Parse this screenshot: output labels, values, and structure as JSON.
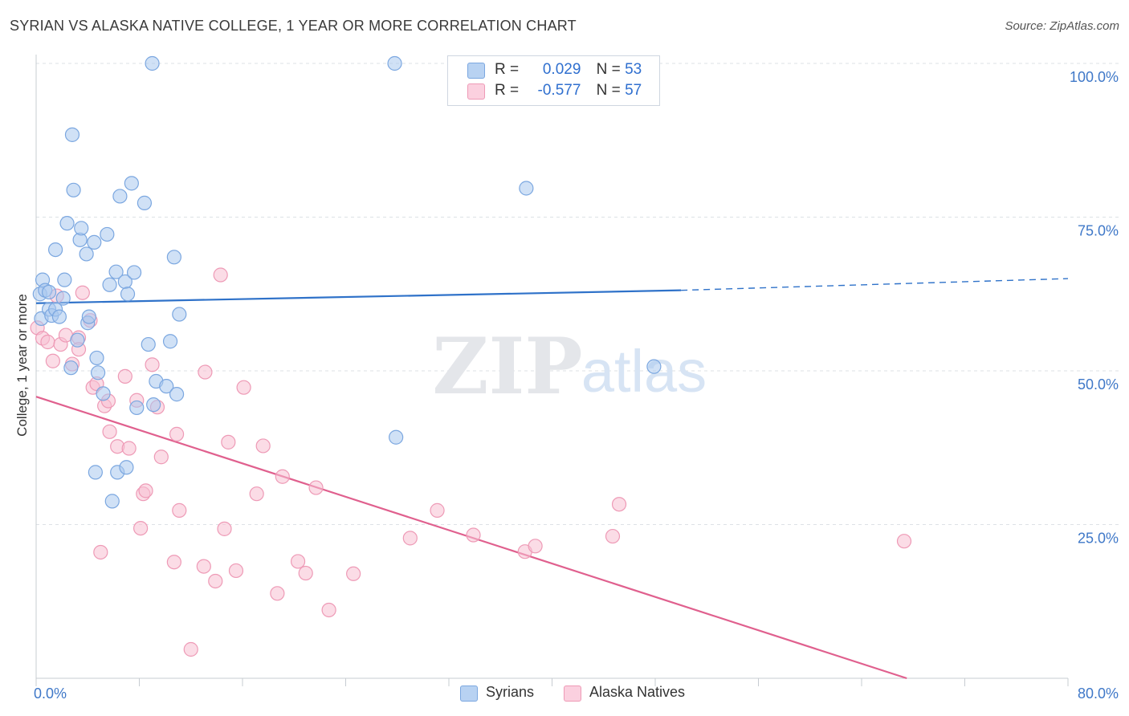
{
  "title": "SYRIAN VS ALASKA NATIVE COLLEGE, 1 YEAR OR MORE CORRELATION CHART",
  "source": "Source: ZipAtlas.com",
  "watermark": {
    "zip": "ZIP",
    "atlas": "atlas"
  },
  "legend": {
    "rows": [
      {
        "r_label": "R =",
        "r_value": "0.029",
        "n_label": "N =",
        "n_value": "53"
      },
      {
        "r_label": "R =",
        "r_value": "-0.577",
        "n_label": "N =",
        "n_value": "57"
      }
    ]
  },
  "bottom_legend": {
    "syrians": "Syrians",
    "alaska": "Alaska Natives"
  },
  "colors": {
    "syrians_fill": "#a9c8ef",
    "syrians_stroke": "#7ba7e0",
    "syrians_line": "#2f72c9",
    "alaska_fill": "#f7bfd1",
    "alaska_stroke": "#ee9ab6",
    "alaska_line": "#e0608e",
    "tick_text": "#3f78c8",
    "grid": "#dde1e6"
  },
  "chart_data": {
    "type": "scatter",
    "title": "SYRIAN VS ALASKA NATIVE COLLEGE, 1 YEAR OR MORE CORRELATION CHART",
    "xlabel": "",
    "ylabel": "College, 1 year or more",
    "xlim": [
      0,
      80
    ],
    "ylim": [
      0,
      100
    ],
    "x_tick_labels": [
      "0.0%",
      "80.0%"
    ],
    "y_ticks": [
      25,
      50,
      75,
      100
    ],
    "y_tick_labels": [
      "25.0%",
      "50.0%",
      "75.0%",
      "100.0%"
    ],
    "grid": true,
    "legend_position": "top-center",
    "series": [
      {
        "name": "Syrians",
        "trend": {
          "x": [
            0,
            50,
            80
          ],
          "y": [
            61.0,
            63.1,
            65.0
          ],
          "solid_to": 50
        },
        "points": [
          [
            0.3,
            62.5
          ],
          [
            0.4,
            58.5
          ],
          [
            0.5,
            64.8
          ],
          [
            0.7,
            63.1
          ],
          [
            1.0,
            60.0
          ],
          [
            1.0,
            62.8
          ],
          [
            1.2,
            59.0
          ],
          [
            1.5,
            69.7
          ],
          [
            1.5,
            60.0
          ],
          [
            1.8,
            58.8
          ],
          [
            2.1,
            61.8
          ],
          [
            2.2,
            64.8
          ],
          [
            2.4,
            74.0
          ],
          [
            2.7,
            50.5
          ],
          [
            2.8,
            88.4
          ],
          [
            2.9,
            79.4
          ],
          [
            3.2,
            55.0
          ],
          [
            3.4,
            71.3
          ],
          [
            3.5,
            73.2
          ],
          [
            3.9,
            69.0
          ],
          [
            4.0,
            57.8
          ],
          [
            4.1,
            58.8
          ],
          [
            4.5,
            70.9
          ],
          [
            4.6,
            33.5
          ],
          [
            4.7,
            52.1
          ],
          [
            4.8,
            49.7
          ],
          [
            5.2,
            46.3
          ],
          [
            5.5,
            72.2
          ],
          [
            5.7,
            64.0
          ],
          [
            5.9,
            28.8
          ],
          [
            6.2,
            66.1
          ],
          [
            6.3,
            33.5
          ],
          [
            6.5,
            78.4
          ],
          [
            6.9,
            64.5
          ],
          [
            7.0,
            34.3
          ],
          [
            7.1,
            62.5
          ],
          [
            7.4,
            80.5
          ],
          [
            7.6,
            66.0
          ],
          [
            7.8,
            44.0
          ],
          [
            8.4,
            77.3
          ],
          [
            8.7,
            54.3
          ],
          [
            9.0,
            100.0
          ],
          [
            9.1,
            44.5
          ],
          [
            9.3,
            48.3
          ],
          [
            10.1,
            47.5
          ],
          [
            10.4,
            54.8
          ],
          [
            10.7,
            68.5
          ],
          [
            10.9,
            46.2
          ],
          [
            11.1,
            59.2
          ],
          [
            27.8,
            100.0
          ],
          [
            27.9,
            39.2
          ],
          [
            38.0,
            79.7
          ],
          [
            47.9,
            50.7
          ]
        ]
      },
      {
        "name": "Alaska Natives",
        "trend": {
          "x": [
            0,
            67.5
          ],
          "y": [
            45.8,
            0.0
          ]
        },
        "points": [
          [
            0.1,
            57.0
          ],
          [
            0.5,
            55.3
          ],
          [
            0.9,
            54.7
          ],
          [
            1.3,
            51.6
          ],
          [
            1.6,
            62.2
          ],
          [
            1.9,
            54.3
          ],
          [
            2.3,
            55.8
          ],
          [
            2.8,
            51.1
          ],
          [
            3.3,
            55.4
          ],
          [
            3.3,
            53.5
          ],
          [
            3.6,
            62.7
          ],
          [
            4.2,
            58.2
          ],
          [
            4.4,
            47.3
          ],
          [
            4.7,
            47.9
          ],
          [
            5.0,
            20.5
          ],
          [
            5.3,
            44.3
          ],
          [
            5.6,
            45.1
          ],
          [
            5.7,
            40.1
          ],
          [
            6.3,
            37.7
          ],
          [
            6.9,
            49.1
          ],
          [
            7.2,
            37.4
          ],
          [
            7.8,
            45.2
          ],
          [
            8.1,
            24.4
          ],
          [
            8.3,
            30.0
          ],
          [
            8.5,
            30.5
          ],
          [
            9.0,
            51.0
          ],
          [
            9.4,
            44.1
          ],
          [
            9.7,
            36.0
          ],
          [
            10.7,
            18.9
          ],
          [
            10.9,
            39.7
          ],
          [
            11.1,
            27.3
          ],
          [
            12.0,
            4.7
          ],
          [
            13.0,
            18.2
          ],
          [
            13.1,
            49.8
          ],
          [
            13.9,
            15.8
          ],
          [
            14.3,
            65.6
          ],
          [
            14.6,
            24.3
          ],
          [
            14.9,
            38.4
          ],
          [
            15.5,
            17.5
          ],
          [
            16.1,
            47.3
          ],
          [
            17.1,
            30.0
          ],
          [
            17.6,
            37.8
          ],
          [
            18.7,
            13.8
          ],
          [
            19.1,
            32.8
          ],
          [
            20.3,
            19.0
          ],
          [
            20.9,
            17.1
          ],
          [
            21.7,
            31.0
          ],
          [
            22.7,
            11.1
          ],
          [
            24.6,
            17.0
          ],
          [
            29.0,
            22.8
          ],
          [
            31.1,
            27.3
          ],
          [
            33.9,
            23.3
          ],
          [
            37.9,
            20.6
          ],
          [
            38.7,
            21.5
          ],
          [
            44.7,
            23.1
          ],
          [
            45.2,
            28.3
          ],
          [
            67.3,
            22.3
          ]
        ]
      }
    ]
  }
}
